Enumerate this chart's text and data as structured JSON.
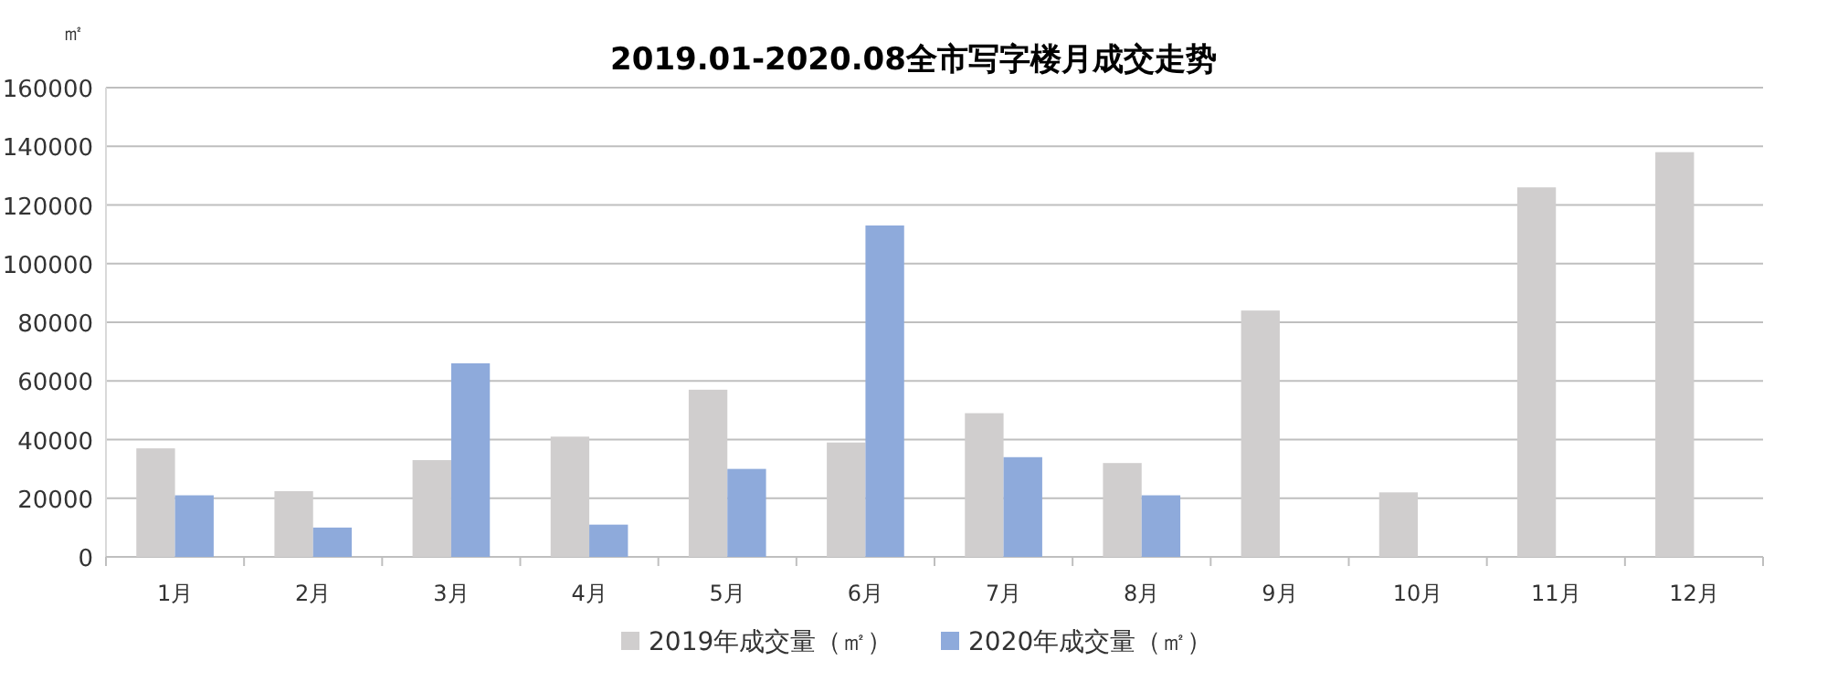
{
  "chart_data": {
    "type": "bar",
    "title": "2019.01-2020.08全市写字楼月成交走势",
    "ylabel": "㎡",
    "categories": [
      "1月",
      "2月",
      "3月",
      "4月",
      "5月",
      "6月",
      "7月",
      "8月",
      "9月",
      "10月",
      "11月",
      "12月"
    ],
    "series": [
      {
        "name": "2019年成交量（㎡）",
        "color": "#d0cece",
        "values": [
          37000,
          22400,
          33000,
          41000,
          57000,
          39000,
          49000,
          32000,
          84000,
          22000,
          126000,
          138000
        ]
      },
      {
        "name": "2020年成交量（㎡）",
        "color": "#8eaadb",
        "values": [
          21000,
          10000,
          66000,
          11000,
          30000,
          113000,
          34000,
          21000,
          null,
          null,
          null,
          null
        ]
      }
    ],
    "ylim": [
      0,
      160000
    ],
    "yticks": [
      0,
      20000,
      40000,
      60000,
      80000,
      100000,
      120000,
      140000,
      160000
    ],
    "grid": "y",
    "legend": "bottom"
  }
}
